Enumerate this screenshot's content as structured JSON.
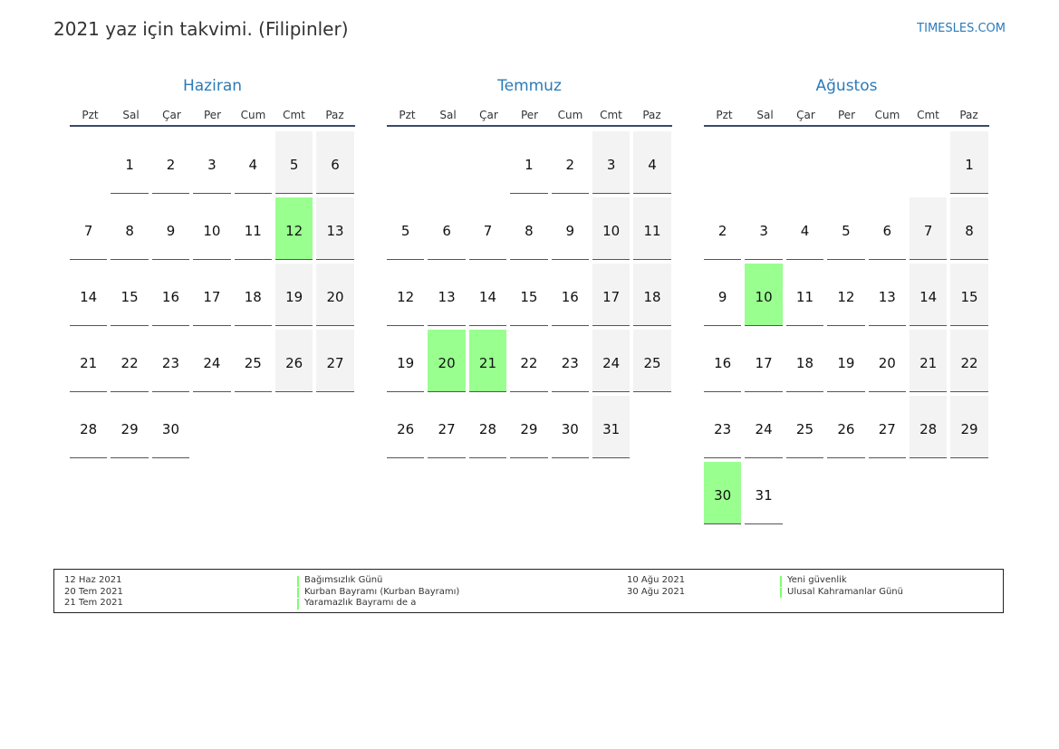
{
  "header": {
    "title": "2021 yaz için takvimi. (Filipinler)",
    "brand": "TIMESLES.COM"
  },
  "weekdays": [
    "Pzt",
    "Sal",
    "Çar",
    "Per",
    "Cum",
    "Cmt",
    "Paz"
  ],
  "colors": {
    "accent": "#2b7bb9",
    "holiday": "#99ff8f",
    "weekend": "#f3f3f3",
    "rule": "#3a4a66"
  },
  "months": [
    {
      "name": "Haziran",
      "offset": 1,
      "days": 30,
      "holidays": [
        12
      ]
    },
    {
      "name": "Temmuz",
      "offset": 3,
      "days": 31,
      "holidays": [
        20,
        21
      ]
    },
    {
      "name": "Ağustos",
      "offset": 6,
      "days": 31,
      "holidays": [
        10,
        30
      ]
    }
  ],
  "legend": {
    "left": [
      {
        "date": "12 Haz 2021",
        "name": "Bağımsızlık Günü"
      },
      {
        "date": "20 Tem 2021",
        "name": "Kurban Bayramı (Kurban Bayramı)"
      },
      {
        "date": "21 Tem 2021",
        "name": "Yaramazlık Bayramı de a"
      }
    ],
    "right": [
      {
        "date": "10 Ağu 2021",
        "name": "Yeni güvenlik"
      },
      {
        "date": "30 Ağu 2021",
        "name": "Ulusal Kahramanlar Günü"
      }
    ]
  }
}
